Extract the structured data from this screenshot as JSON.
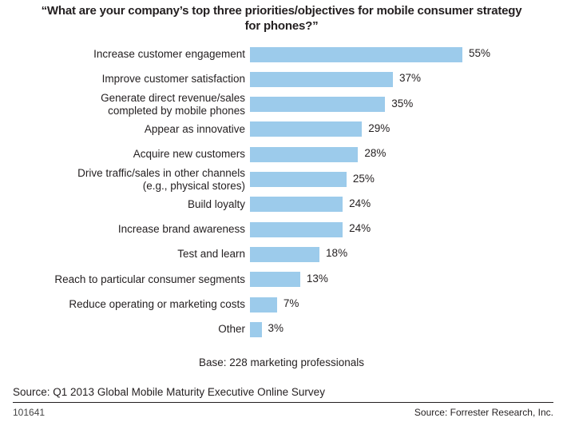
{
  "chart_data": {
    "type": "bar",
    "orientation": "horizontal",
    "title": "“What are your company’s top three priorities/objectives for mobile consumer strategy for phones?”",
    "title_lines": [
      "“What are your company’s top three priorities/objectives for mobile consumer strategy",
      "for phones?”"
    ],
    "categories": [
      [
        "Increase customer engagement"
      ],
      [
        "Improve customer satisfaction"
      ],
      [
        "Generate direct revenue/sales",
        "completed by mobile phones"
      ],
      [
        "Appear as innovative"
      ],
      [
        "Acquire new customers"
      ],
      [
        "Drive traffic/sales in other channels",
        "(e.g., physical stores)"
      ],
      [
        "Build loyalty"
      ],
      [
        "Increase brand awareness"
      ],
      [
        "Test and learn"
      ],
      [
        "Reach to particular consumer segments"
      ],
      [
        "Reduce operating or marketing costs"
      ],
      [
        "Other"
      ]
    ],
    "values": [
      55,
      37,
      35,
      29,
      28,
      25,
      24,
      24,
      18,
      13,
      7,
      3
    ],
    "value_labels": [
      "55%",
      "37%",
      "35%",
      "29%",
      "28%",
      "25%",
      "24%",
      "24%",
      "18%",
      "13%",
      "7%",
      "3%"
    ],
    "unit": "%",
    "xlim": [
      0,
      55
    ],
    "grid": false,
    "bar_color": "#9ccbeb",
    "xlabel": "",
    "ylabel": ""
  },
  "base_note": "Base: 228 marketing professionals",
  "source": "Source: Q1 2013 Global Mobile Maturity Executive Online Survey",
  "code": "101641",
  "credit": "Source: Forrester Research, Inc."
}
